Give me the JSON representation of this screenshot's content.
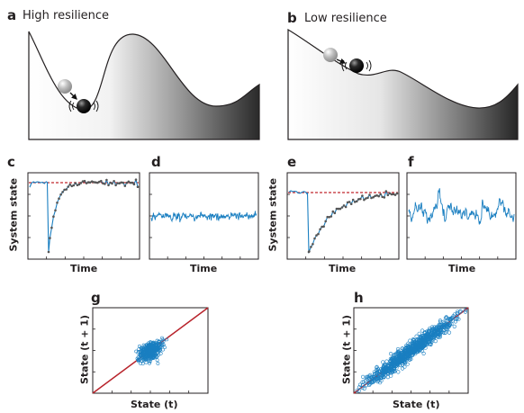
{
  "panels": {
    "a": {
      "letter": "a",
      "title": "High resilience"
    },
    "b": {
      "letter": "b",
      "title": "Low resilience"
    },
    "c": {
      "letter": "c"
    },
    "d": {
      "letter": "d"
    },
    "e": {
      "letter": "e"
    },
    "f": {
      "letter": "f"
    },
    "g": {
      "letter": "g"
    },
    "h": {
      "letter": "h"
    }
  },
  "axes": {
    "system_state": "System state",
    "time": "Time",
    "state_t1": "State (t + 1)",
    "state_t": "State (t)"
  },
  "colors": {
    "landscape_dark": "#2b2b2b",
    "ball": "#111111",
    "ball_ghost": "#aaaaaa",
    "series_blue": "#1a7fc1",
    "series_gray": "#555555",
    "reference_red": "#c0272d",
    "identity_red": "#b8232b"
  },
  "icons": [
    "ball-icon",
    "ghost-ball-icon",
    "arrow-icon",
    "vibration-icon"
  ]
}
